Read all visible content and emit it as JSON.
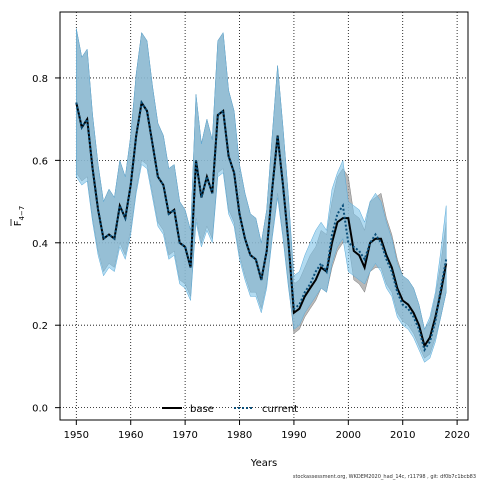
{
  "chart_data": {
    "type": "line",
    "xlabel": "Years",
    "ylabel_main": "F",
    "ylabel_sub": "4−7",
    "xlim": [
      1947,
      2022
    ],
    "ylim": [
      -0.03,
      0.96
    ],
    "xticks": [
      1950,
      1960,
      1970,
      1980,
      1990,
      2000,
      2010,
      2020
    ],
    "yticks": [
      0.0,
      0.2,
      0.4,
      0.6,
      0.8
    ],
    "ytick_labels": [
      "0.0",
      "0.2",
      "0.4",
      "0.6",
      "0.8"
    ],
    "grid": true,
    "legend_placement": "bottom-center",
    "footnote": "stockassessment.org, WKDEM2020_had_14c, r11798 , git: df0b7c1bcb83",
    "colors": {
      "base_line": "#000000",
      "base_band": "#a0a0a0",
      "current_line": "#0a4f7a",
      "current_band": "#7ec3e8"
    },
    "x": [
      1950,
      1951,
      1952,
      1953,
      1954,
      1955,
      1956,
      1957,
      1958,
      1959,
      1960,
      1961,
      1962,
      1963,
      1964,
      1965,
      1966,
      1967,
      1968,
      1969,
      1970,
      1971,
      1972,
      1973,
      1974,
      1975,
      1976,
      1977,
      1978,
      1979,
      1980,
      1981,
      1982,
      1983,
      1984,
      1985,
      1986,
      1987,
      1988,
      1989,
      1990,
      1991,
      1992,
      1993,
      1994,
      1995,
      1996,
      1997,
      1998,
      1999,
      2000,
      2001,
      2002,
      2003,
      2004,
      2005,
      2006,
      2007,
      2008,
      2009,
      2010,
      2011,
      2012,
      2013,
      2014,
      2015,
      2016,
      2017,
      2018
    ],
    "series": [
      {
        "name": "base",
        "values": [
          0.74,
          0.68,
          0.7,
          0.58,
          0.48,
          0.41,
          0.42,
          0.41,
          0.49,
          0.46,
          0.54,
          0.66,
          0.74,
          0.72,
          0.64,
          0.56,
          0.54,
          0.47,
          0.48,
          0.4,
          0.39,
          0.34,
          0.6,
          0.51,
          0.56,
          0.52,
          0.71,
          0.72,
          0.61,
          0.57,
          0.47,
          0.41,
          0.37,
          0.36,
          0.31,
          0.38,
          0.53,
          0.66,
          0.54,
          0.4,
          0.23,
          0.24,
          0.27,
          0.29,
          0.31,
          0.34,
          0.33,
          0.4,
          0.45,
          0.46,
          0.46,
          0.38,
          0.37,
          0.34,
          0.4,
          0.41,
          0.41,
          0.37,
          0.34,
          0.29,
          0.26,
          0.25,
          0.23,
          0.2,
          0.15,
          0.17,
          0.22,
          0.28,
          0.35
        ],
        "lower": [
          0.57,
          0.55,
          0.56,
          0.46,
          0.38,
          0.33,
          0.35,
          0.34,
          0.4,
          0.37,
          0.43,
          0.53,
          0.6,
          0.59,
          0.52,
          0.45,
          0.43,
          0.37,
          0.38,
          0.31,
          0.3,
          0.27,
          0.46,
          0.4,
          0.44,
          0.41,
          0.57,
          0.58,
          0.48,
          0.45,
          0.37,
          0.32,
          0.28,
          0.28,
          0.24,
          0.3,
          0.42,
          0.52,
          0.42,
          0.3,
          0.18,
          0.19,
          0.22,
          0.24,
          0.26,
          0.29,
          0.28,
          0.34,
          0.38,
          0.4,
          0.4,
          0.31,
          0.3,
          0.28,
          0.33,
          0.34,
          0.34,
          0.3,
          0.28,
          0.23,
          0.21,
          0.2,
          0.18,
          0.15,
          0.12,
          0.13,
          0.17,
          0.22,
          0.28
        ],
        "upper": [
          0.92,
          0.85,
          0.87,
          0.71,
          0.59,
          0.5,
          0.53,
          0.51,
          0.6,
          0.56,
          0.66,
          0.81,
          0.91,
          0.89,
          0.78,
          0.69,
          0.66,
          0.58,
          0.59,
          0.5,
          0.48,
          0.43,
          0.76,
          0.64,
          0.7,
          0.65,
          0.89,
          0.91,
          0.77,
          0.72,
          0.59,
          0.52,
          0.47,
          0.46,
          0.4,
          0.48,
          0.66,
          0.83,
          0.68,
          0.51,
          0.3,
          0.31,
          0.34,
          0.37,
          0.39,
          0.43,
          0.42,
          0.5,
          0.56,
          0.58,
          0.56,
          0.47,
          0.46,
          0.43,
          0.5,
          0.51,
          0.52,
          0.46,
          0.42,
          0.36,
          0.32,
          0.31,
          0.29,
          0.25,
          0.19,
          0.21,
          0.27,
          0.35,
          0.45
        ]
      },
      {
        "name": "current",
        "values": [
          0.74,
          0.68,
          0.7,
          0.58,
          0.48,
          0.41,
          0.42,
          0.41,
          0.49,
          0.46,
          0.54,
          0.66,
          0.74,
          0.72,
          0.64,
          0.56,
          0.54,
          0.47,
          0.48,
          0.4,
          0.39,
          0.34,
          0.6,
          0.51,
          0.56,
          0.52,
          0.71,
          0.72,
          0.61,
          0.57,
          0.47,
          0.41,
          0.37,
          0.36,
          0.31,
          0.38,
          0.53,
          0.66,
          0.54,
          0.4,
          0.24,
          0.25,
          0.28,
          0.3,
          0.33,
          0.35,
          0.33,
          0.42,
          0.47,
          0.49,
          0.4,
          0.39,
          0.38,
          0.36,
          0.4,
          0.42,
          0.4,
          0.36,
          0.33,
          0.28,
          0.25,
          0.24,
          0.22,
          0.19,
          0.14,
          0.16,
          0.21,
          0.29,
          0.36
        ],
        "lower": [
          0.56,
          0.54,
          0.55,
          0.45,
          0.37,
          0.32,
          0.34,
          0.33,
          0.39,
          0.36,
          0.42,
          0.52,
          0.59,
          0.58,
          0.51,
          0.44,
          0.42,
          0.36,
          0.37,
          0.3,
          0.29,
          0.26,
          0.45,
          0.39,
          0.43,
          0.4,
          0.56,
          0.57,
          0.47,
          0.44,
          0.36,
          0.31,
          0.27,
          0.27,
          0.23,
          0.29,
          0.41,
          0.51,
          0.41,
          0.29,
          0.19,
          0.2,
          0.23,
          0.25,
          0.27,
          0.29,
          0.28,
          0.35,
          0.39,
          0.41,
          0.33,
          0.32,
          0.31,
          0.3,
          0.33,
          0.35,
          0.33,
          0.29,
          0.27,
          0.22,
          0.2,
          0.19,
          0.17,
          0.14,
          0.11,
          0.12,
          0.16,
          0.22,
          0.28
        ],
        "upper": [
          0.92,
          0.85,
          0.87,
          0.71,
          0.59,
          0.5,
          0.53,
          0.51,
          0.6,
          0.56,
          0.66,
          0.81,
          0.91,
          0.89,
          0.78,
          0.69,
          0.66,
          0.58,
          0.59,
          0.5,
          0.48,
          0.43,
          0.76,
          0.64,
          0.7,
          0.65,
          0.89,
          0.91,
          0.77,
          0.72,
          0.59,
          0.52,
          0.47,
          0.46,
          0.4,
          0.48,
          0.66,
          0.83,
          0.68,
          0.51,
          0.32,
          0.33,
          0.37,
          0.4,
          0.43,
          0.45,
          0.43,
          0.53,
          0.57,
          0.6,
          0.5,
          0.49,
          0.48,
          0.45,
          0.5,
          0.52,
          0.5,
          0.45,
          0.41,
          0.35,
          0.32,
          0.31,
          0.29,
          0.25,
          0.19,
          0.22,
          0.28,
          0.38,
          0.49
        ]
      }
    ]
  }
}
